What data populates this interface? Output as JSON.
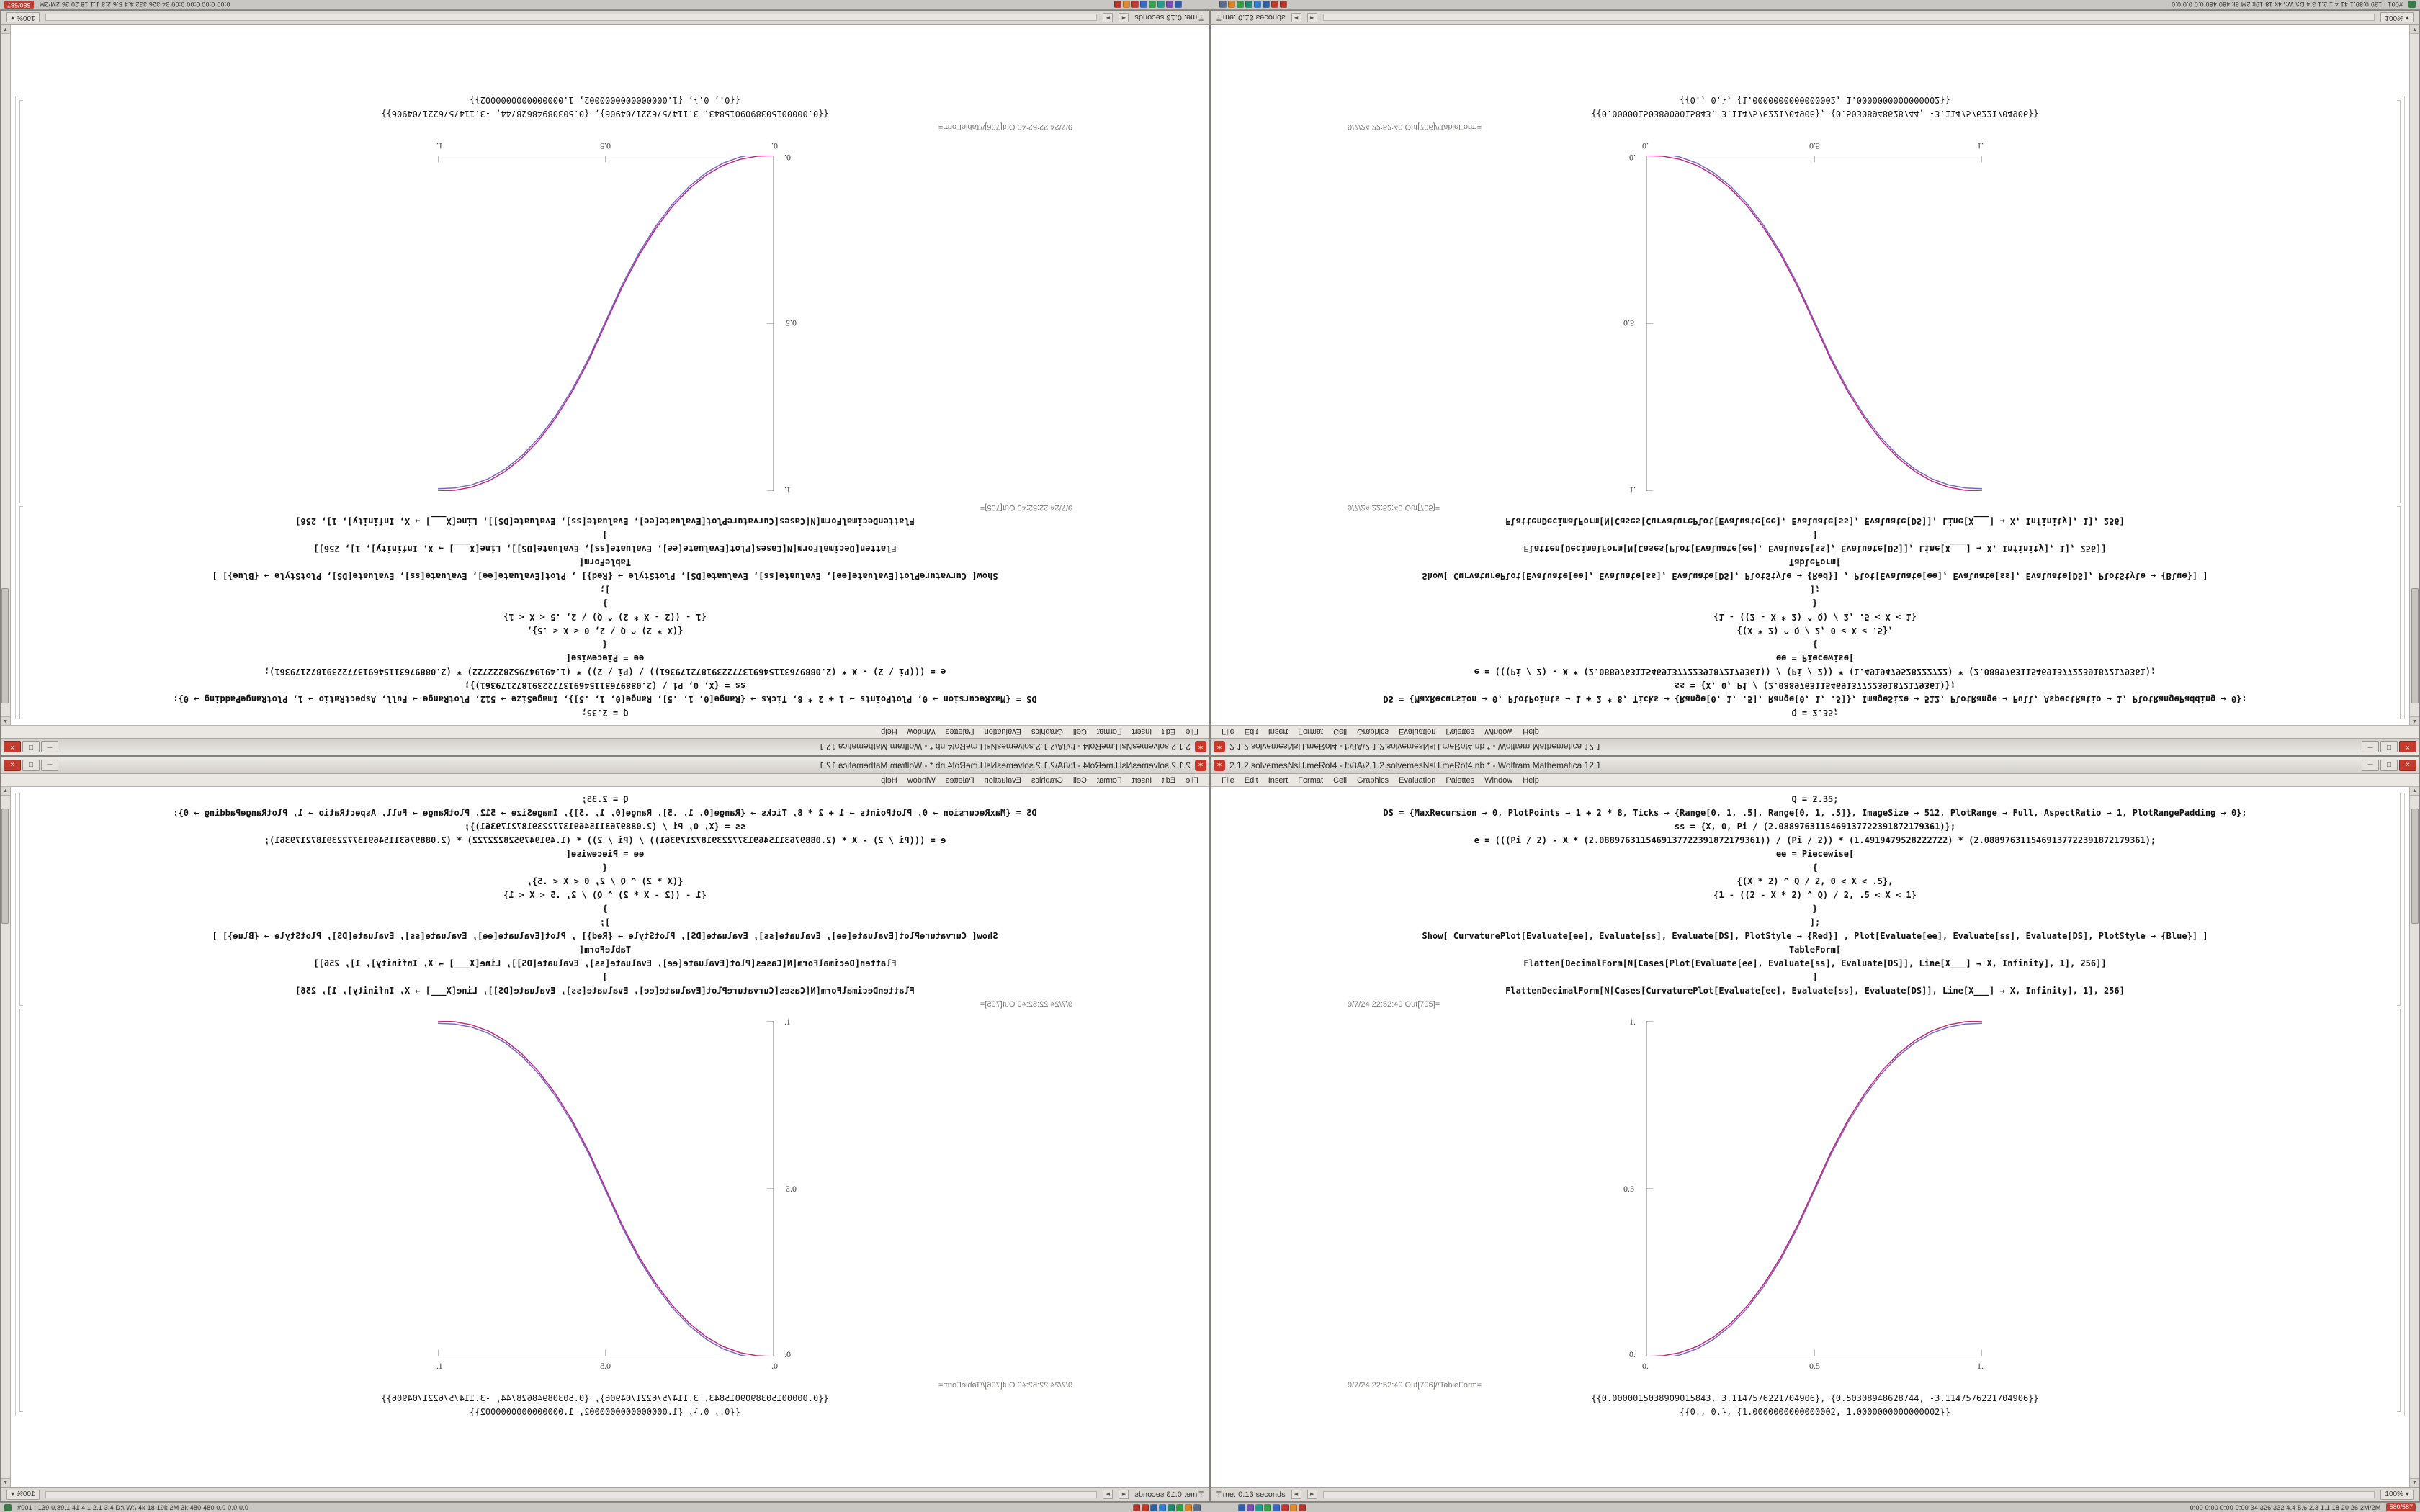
{
  "taskbar": {
    "left_badge": "",
    "left_text": "#001 | 139.0.89.1:41   4.1  2.1  3.4   D:\\  W:\\  4k  18  19k  2M  3k  480  480  0.0  0.0  0.0",
    "right_text": "0:00  0:00  0:00  0:00   34  326  332   4.4  5.6  2.3  1.1   18  20  26   2M/2M",
    "counter_chip": "580/587",
    "icon_colors_a": [
      "#b5342c",
      "#c0392b",
      "#2e5fa3",
      "#2d7dd2",
      "#1f8a70",
      "#2e9e44",
      "#d98324",
      "#5b6d8f"
    ],
    "icon_colors_b": [
      "#2d5fae",
      "#7a4bb5",
      "#1f9e8e",
      "#35a04a",
      "#3568c9",
      "#c23531",
      "#e08a2e",
      "#b5342c"
    ]
  },
  "window": {
    "title": "2.1.2.solvemesNsH.meRot4 - f:\\8A\\2.1.2.solvemesNsH.meRot4.nb * - Wolfram Mathematica 12.1",
    "app_icon_glyph": "✶",
    "controls": {
      "minimize": "─",
      "maximize": "□",
      "close": "×"
    },
    "menu": [
      "File",
      "Edit",
      "Insert",
      "Format",
      "Cell",
      "Graphics",
      "Evaluation",
      "Palettes",
      "Window",
      "Help"
    ],
    "code_lines": [
      "Q = 2.35;",
      "DS = {MaxRecursion → 0, PlotPoints → 1 + 2 * 8, Ticks → {Range[0, 1, .5], Range[0, 1, .5]}, ImageSize → 512, PlotRange → Full, AspectRatio → 1, PlotRangePadding → 0};",
      "ss = {X, 0, Pi / (2.0889763115469137722391872179361)};",
      "e = (((Pi / 2) - X * (2.0889763115469137722391872179361)) / (Pi / 2)) * (1.4919479528222722) * (2.0889763115469137722391872179361);",
      "ee = Piecewise[",
      "{",
      "{(X * 2) ^ Q / 2, 0 < X < .5},",
      "{1 - ((2 - X * 2) ^ Q) / 2, .5 < X < 1}",
      "}",
      "];",
      "Show[  CurvaturePlot[Evaluate[ee], Evaluate[ss], Evaluate[DS], PlotStyle → {Red}] ,  Plot[Evaluate[ee], Evaluate[ss], Evaluate[DS], PlotStyle → {Blue}]  ]",
      "TableForm[",
      "Flatten[DecimalForm[N[Cases[Plot[Evaluate[ee], Evaluate[ss], Evaluate[DS]], Line[X___] → X, Infinity], 1], 256]]",
      "]",
      "FlattenDecimalForm[N[Cases[CurvaturePlot[Evaluate[ee], Evaluate[ss], Evaluate[DS]], Line[X___] → X, Infinity], 1], 256]"
    ],
    "out_plot_label": "9/7/24 22:52:40 Out[705]=",
    "out_table_label": "9/7/24 22:52:40 Out[706]//TableForm=",
    "table_lines": [
      "{{0.0000015038909015843, 3.1147576221704906}, {0.50308948628744, -3.1147576221704906}}",
      "{{0., 0.}, {1.0000000000000002, 1.0000000000000002}}"
    ],
    "status": {
      "time": "Time: 0.13 seconds",
      "zoom": "100%",
      "zoom_caret": "▾",
      "scroll_left": "◀",
      "scroll_right": "▶"
    },
    "scrollbar": {
      "up": "▲",
      "down": "▼"
    }
  },
  "plot": {
    "yticks": [
      "1.",
      "0.5",
      "0."
    ],
    "xticks": [
      "0.",
      "0.5",
      "1."
    ]
  },
  "chart_data": {
    "type": "line",
    "title": "Out[705]= piecewise smoothstep curve (Q = 2.35)",
    "xlabel": "",
    "ylabel": "",
    "xlim": [
      0,
      1
    ],
    "ylim": [
      0,
      1
    ],
    "xticks": [
      0,
      0.5,
      1
    ],
    "yticks": [
      0,
      0.5,
      1
    ],
    "grid": false,
    "legend": "none",
    "x": [
      0,
      0.05,
      0.1,
      0.15,
      0.2,
      0.25,
      0.3,
      0.35,
      0.4,
      0.45,
      0.5,
      0.55,
      0.6,
      0.65,
      0.7,
      0.75,
      0.8,
      0.85,
      0.9,
      0.95,
      1
    ],
    "series": [
      {
        "name": "CurvaturePlot (Red)",
        "values": [
          0,
          0.0022,
          0.0114,
          0.0295,
          0.058,
          0.098,
          0.1504,
          0.2163,
          0.2959,
          0.3903,
          0.5,
          0.6097,
          0.7041,
          0.7837,
          0.8496,
          0.902,
          0.942,
          0.9705,
          0.9886,
          0.9978,
          1
        ]
      },
      {
        "name": "Plot (Blue)",
        "values": [
          0,
          0.0022,
          0.0114,
          0.0295,
          0.058,
          0.098,
          0.1504,
          0.2163,
          0.2959,
          0.3903,
          0.5,
          0.6097,
          0.7041,
          0.7837,
          0.8496,
          0.902,
          0.942,
          0.9705,
          0.9886,
          0.9978,
          1
        ]
      }
    ]
  }
}
